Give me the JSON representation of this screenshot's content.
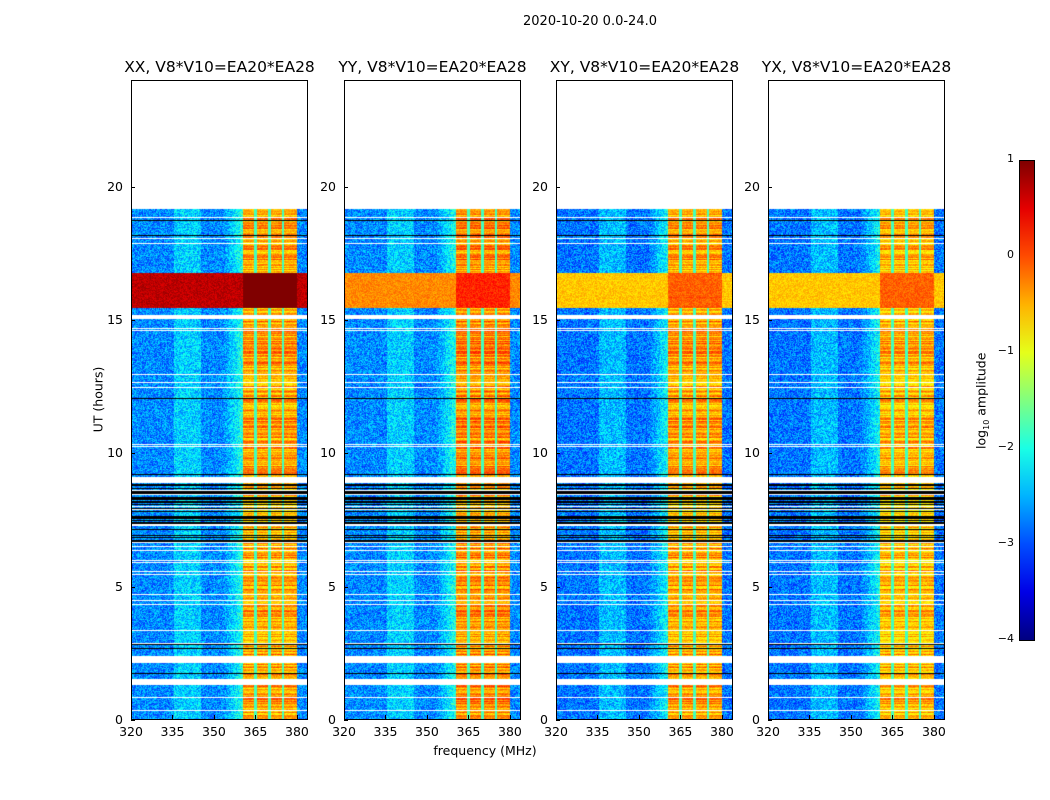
{
  "chart_data": {
    "type": "heatmap",
    "title": "2020-10-20 0.0-24.0",
    "xlabel": "frequency (MHz)",
    "ylabel": "UT (hours)",
    "xlim": [
      320,
      384
    ],
    "ylim": [
      0,
      24
    ],
    "xticks": [
      320,
      335,
      350,
      365,
      380
    ],
    "yticks": [
      0,
      5,
      10,
      15,
      20
    ],
    "data_time_range_hours": [
      0,
      19.3
    ],
    "rfi_band_mhz": [
      360.5,
      380
    ],
    "band_gaps_mhz": [
      365,
      370,
      375
    ],
    "flagged_white_hours": [
      [
        15.1,
        15.25
      ],
      [
        8.95,
        9.15
      ],
      [
        2.2,
        2.45
      ],
      [
        1.35,
        1.6
      ]
    ],
    "flagged_black_hours": [
      [
        8.0,
        8.9
      ],
      [
        6.7,
        8.0
      ],
      [
        2.6,
        2.8
      ]
    ],
    "high_amplitude_hours": [
      15.5,
      16.8
    ],
    "colorbar": {
      "label_main": "log",
      "label_sub": "10",
      "label_rest": " amplitude",
      "colormap": "jet",
      "range": [
        -4,
        1
      ],
      "ticks": [
        "1",
        "0",
        "−1",
        "−2",
        "−3",
        "−4"
      ]
    },
    "panels": [
      {
        "title": "XX, V8*V10=EA20*EA28",
        "background_level": -2.7,
        "band_level": -0.4,
        "high_level": 0.7
      },
      {
        "title": "YY, V8*V10=EA20*EA28",
        "background_level": -2.7,
        "band_level": -0.3,
        "high_level": -0.3
      },
      {
        "title": "XY, V8*V10=EA20*EA28",
        "background_level": -2.8,
        "band_level": -0.4,
        "high_level": -0.6
      },
      {
        "title": "YX, V8*V10=EA20*EA28",
        "background_level": -2.8,
        "band_level": -0.5,
        "high_level": -0.6
      }
    ]
  }
}
